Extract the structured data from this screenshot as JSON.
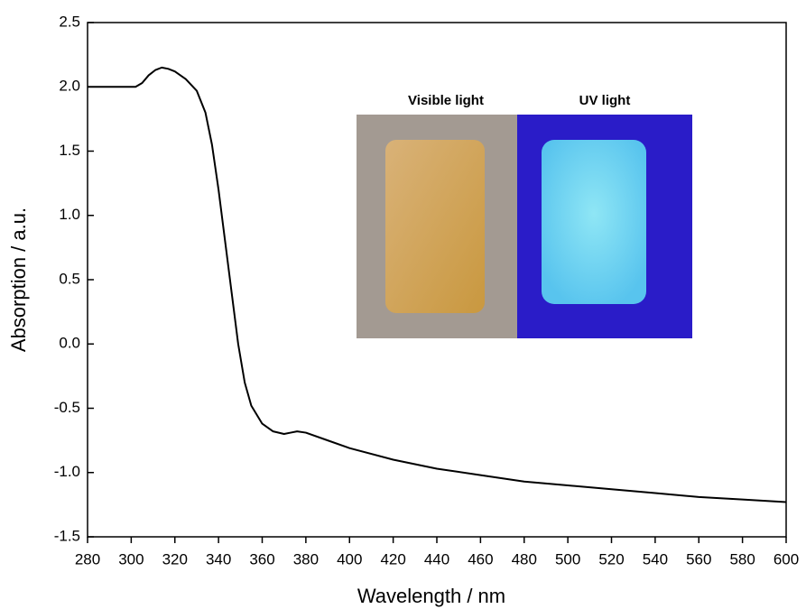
{
  "chart_data": {
    "type": "line",
    "x_label": "Wavelength / nm",
    "y_label": "Absorption / a.u.",
    "x": [
      280,
      302,
      305,
      308,
      311,
      314,
      317,
      320,
      325,
      330,
      334,
      337,
      340,
      343,
      346,
      349,
      352,
      355,
      360,
      365,
      370,
      373,
      376,
      380,
      390,
      400,
      420,
      440,
      460,
      480,
      500,
      520,
      540,
      560,
      580,
      600
    ],
    "values": [
      2.0,
      2.0,
      2.03,
      2.09,
      2.13,
      2.15,
      2.14,
      2.12,
      2.06,
      1.97,
      1.8,
      1.55,
      1.2,
      0.8,
      0.4,
      0.0,
      -0.3,
      -0.48,
      -0.62,
      -0.68,
      -0.7,
      -0.69,
      -0.68,
      -0.69,
      -0.75,
      -0.81,
      -0.9,
      -0.97,
      -1.02,
      -1.07,
      -1.1,
      -1.13,
      -1.16,
      -1.19,
      -1.21,
      -1.23
    ],
    "color": "#000000",
    "xlim": [
      280,
      600
    ],
    "xticks": [
      280,
      300,
      320,
      340,
      360,
      380,
      400,
      420,
      440,
      460,
      480,
      500,
      520,
      540,
      560,
      580,
      600
    ],
    "ylim": [
      -1.5,
      2.5
    ],
    "yticks": [
      -1.5,
      -0.5,
      0.5,
      2.5,
      {
        "value": -1,
        "label": "-1.0"
      },
      {
        "value": 0,
        "label": "0.0"
      },
      {
        "value": 1,
        "label": "1.0"
      },
      {
        "value": 2,
        "label": "2.0"
      },
      {
        "value": 1.5,
        "label": "1.5"
      }
    ],
    "inset_labels": [
      "Visible light",
      "UV light"
    ]
  }
}
